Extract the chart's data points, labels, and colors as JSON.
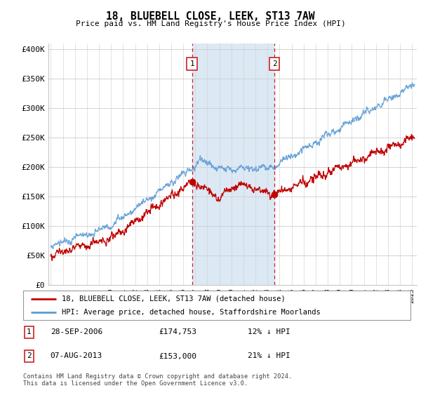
{
  "title": "18, BLUEBELL CLOSE, LEEK, ST13 7AW",
  "subtitle": "Price paid vs. HM Land Registry's House Price Index (HPI)",
  "ylabel_ticks": [
    "£0",
    "£50K",
    "£100K",
    "£150K",
    "£200K",
    "£250K",
    "£300K",
    "£350K",
    "£400K"
  ],
  "ytick_values": [
    0,
    50000,
    100000,
    150000,
    200000,
    250000,
    300000,
    350000,
    400000
  ],
  "ylim": [
    0,
    410000
  ],
  "xlim_start": 1994.8,
  "xlim_end": 2025.4,
  "hpi_color": "#5b9bd5",
  "price_color": "#c00000",
  "shaded_color": "#dce9f5",
  "marker1_year": 2006.73,
  "marker2_year": 2013.58,
  "marker1_price": 174753,
  "marker2_price": 153000,
  "legend_line1": "18, BLUEBELL CLOSE, LEEK, ST13 7AW (detached house)",
  "legend_line2": "HPI: Average price, detached house, Staffordshire Moorlands",
  "table_row1": [
    "1",
    "28-SEP-2006",
    "£174,753",
    "12% ↓ HPI"
  ],
  "table_row2": [
    "2",
    "07-AUG-2013",
    "£153,000",
    "21% ↓ HPI"
  ],
  "footer1": "Contains HM Land Registry data © Crown copyright and database right 2024.",
  "footer2": "This data is licensed under the Open Government Licence v3.0.",
  "background_chart": "#ffffff",
  "grid_color": "#cccccc"
}
